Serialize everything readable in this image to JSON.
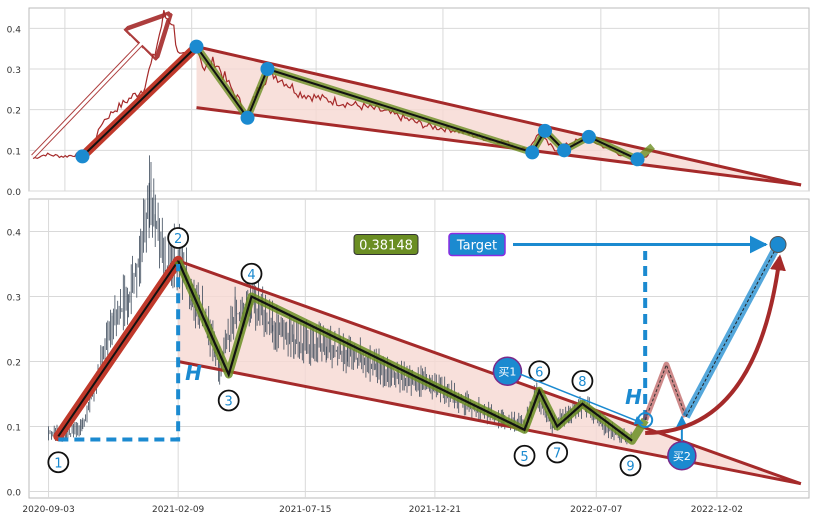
{
  "chart_data": [
    {
      "panel": "top",
      "type": "line",
      "xlim": [
        "2020-07-20",
        "2023-03-25"
      ],
      "ylim": [
        0,
        0.45
      ],
      "yticks": [
        0.0,
        0.1,
        0.2,
        0.3,
        0.4
      ],
      "ytick_labels": [
        "0.0",
        "0.1",
        "0.2",
        "0.3",
        "0.4"
      ],
      "grid": true,
      "price_series": [
        [
          "2020-07-25",
          0.08
        ],
        [
          "2020-08-10",
          0.09
        ],
        [
          "2020-09-01",
          0.085
        ],
        [
          "2020-09-20",
          0.09
        ],
        [
          "2020-10-05",
          0.1
        ],
        [
          "2020-10-20",
          0.17
        ],
        [
          "2020-11-05",
          0.2
        ],
        [
          "2020-11-25",
          0.23
        ],
        [
          "2020-12-10",
          0.25
        ],
        [
          "2020-12-25",
          0.34
        ],
        [
          "2021-01-05",
          0.43
        ],
        [
          "2021-01-15",
          0.42
        ],
        [
          "2021-01-25",
          0.33
        ],
        [
          "2021-02-05",
          0.32
        ],
        [
          "2021-02-15",
          0.36
        ],
        [
          "2021-02-25",
          0.3
        ],
        [
          "2021-03-10",
          0.32
        ],
        [
          "2021-03-25",
          0.27
        ],
        [
          "2021-04-10",
          0.22
        ],
        [
          "2021-04-20",
          0.19
        ],
        [
          "2021-05-05",
          0.26
        ],
        [
          "2021-05-20",
          0.29
        ],
        [
          "2021-06-05",
          0.27
        ],
        [
          "2021-06-25",
          0.24
        ],
        [
          "2021-07-15",
          0.23
        ],
        [
          "2021-08-10",
          0.22
        ],
        [
          "2021-09-05",
          0.21
        ],
        [
          "2021-10-01",
          0.2
        ],
        [
          "2021-11-01",
          0.18
        ],
        [
          "2021-12-01",
          0.16
        ],
        [
          "2022-01-05",
          0.15
        ],
        [
          "2022-02-10",
          0.13
        ],
        [
          "2022-03-10",
          0.12
        ],
        [
          "2022-04-05",
          0.1
        ],
        [
          "2022-04-20",
          0.14
        ],
        [
          "2022-05-10",
          0.1
        ],
        [
          "2022-06-01",
          0.12
        ],
        [
          "2022-06-20",
          0.13
        ],
        [
          "2022-07-10",
          0.11
        ],
        [
          "2022-08-01",
          0.09
        ],
        [
          "2022-08-25",
          0.08
        ],
        [
          "2022-09-05",
          0.09
        ]
      ],
      "upper_trendline": [
        [
          "2021-02-15",
          0.355
        ],
        [
          "2023-03-15",
          0.015
        ]
      ],
      "lower_trendline": [
        [
          "2021-02-15",
          0.205
        ],
        [
          "2023-03-15",
          0.015
        ]
      ],
      "zigzag": [
        [
          "2020-09-25",
          0.085
        ],
        [
          "2021-02-15",
          0.355
        ],
        [
          "2021-04-20",
          0.18
        ],
        [
          "2021-05-15",
          0.3
        ],
        [
          "2022-04-12",
          0.095
        ],
        [
          "2022-04-28",
          0.148
        ],
        [
          "2022-05-22",
          0.1
        ],
        [
          "2022-06-22",
          0.133
        ],
        [
          "2022-08-22",
          0.078
        ],
        [
          "2022-09-10",
          0.11
        ]
      ],
      "pivot_points": [
        [
          "2020-09-25",
          0.085
        ],
        [
          "2021-02-15",
          0.355
        ],
        [
          "2021-04-20",
          0.18
        ],
        [
          "2021-05-15",
          0.3
        ],
        [
          "2022-04-12",
          0.095
        ],
        [
          "2022-04-28",
          0.148
        ],
        [
          "2022-05-22",
          0.1
        ],
        [
          "2022-06-22",
          0.133
        ],
        [
          "2022-08-22",
          0.078
        ]
      ],
      "rise_arrow": [
        [
          "2020-07-25",
          0.085
        ],
        [
          "2021-01-10",
          0.43
        ]
      ]
    },
    {
      "panel": "bottom",
      "type": "line",
      "xlim": [
        "2020-08-10",
        "2023-03-25"
      ],
      "ylim": [
        -0.01,
        0.45
      ],
      "xticks": [
        "2020-09-03",
        "2021-02-09",
        "2021-07-15",
        "2021-12-21",
        "2022-07-07",
        "2022-12-02"
      ],
      "xtick_labels": [
        "2020-09-03",
        "2021-02-09",
        "2021-07-15",
        "2021-12-21",
        "2022-07-07",
        "2022-12-02"
      ],
      "yticks": [
        0.0,
        0.1,
        0.2,
        0.3,
        0.4
      ],
      "ytick_labels": [
        "0.0",
        "0.1",
        "0.2",
        "0.3",
        "0.4"
      ],
      "grid": true,
      "price_series": [
        [
          "2020-09-03",
          0.09
        ],
        [
          "2020-09-25",
          0.085
        ],
        [
          "2020-10-15",
          0.1
        ],
        [
          "2020-11-01",
          0.17
        ],
        [
          "2020-11-20",
          0.25
        ],
        [
          "2020-12-10",
          0.3
        ],
        [
          "2020-12-25",
          0.36
        ],
        [
          "2021-01-05",
          0.45
        ],
        [
          "2021-01-12",
          0.42
        ],
        [
          "2021-01-25",
          0.33
        ],
        [
          "2021-02-09",
          0.36
        ],
        [
          "2021-02-25",
          0.3
        ],
        [
          "2021-03-15",
          0.26
        ],
        [
          "2021-04-01",
          0.19
        ],
        [
          "2021-04-20",
          0.27
        ],
        [
          "2021-05-10",
          0.29
        ],
        [
          "2021-06-05",
          0.25
        ],
        [
          "2021-07-01",
          0.23
        ],
        [
          "2021-08-10",
          0.22
        ],
        [
          "2021-09-05",
          0.21
        ],
        [
          "2021-10-10",
          0.19
        ],
        [
          "2021-11-15",
          0.17
        ],
        [
          "2021-12-21",
          0.16
        ],
        [
          "2022-02-01",
          0.13
        ],
        [
          "2022-03-15",
          0.11
        ],
        [
          "2022-04-10",
          0.1
        ],
        [
          "2022-04-25",
          0.15
        ],
        [
          "2022-05-15",
          0.1
        ],
        [
          "2022-06-05",
          0.12
        ],
        [
          "2022-06-25",
          0.13
        ],
        [
          "2022-07-15",
          0.1
        ],
        [
          "2022-08-05",
          0.085
        ],
        [
          "2022-08-20",
          0.08
        ]
      ],
      "upper_trendline": [
        [
          "2021-02-09",
          0.355
        ],
        [
          "2023-03-15",
          0.012
        ]
      ],
      "lower_trendline": [
        [
          "2021-02-09",
          0.2
        ],
        [
          "2023-03-15",
          0.012
        ]
      ],
      "zigzag": [
        [
          "2020-09-15",
          0.085
        ],
        [
          "2021-02-09",
          0.355
        ],
        [
          "2021-04-12",
          0.18
        ],
        [
          "2021-05-10",
          0.3
        ],
        [
          "2022-04-10",
          0.095
        ],
        [
          "2022-04-28",
          0.155
        ],
        [
          "2022-05-20",
          0.1
        ],
        [
          "2022-06-20",
          0.135
        ],
        [
          "2022-08-20",
          0.078
        ],
        [
          "2022-09-05",
          0.11
        ]
      ],
      "numbered_pivots": [
        {
          "label": "1",
          "x": "2020-09-15",
          "y": 0.045
        },
        {
          "label": "2",
          "x": "2021-02-09",
          "y": 0.39
        },
        {
          "label": "3",
          "x": "2021-04-12",
          "y": 0.14
        },
        {
          "label": "4",
          "x": "2021-05-10",
          "y": 0.335
        },
        {
          "label": "5",
          "x": "2022-04-10",
          "y": 0.055
        },
        {
          "label": "6",
          "x": "2022-04-28",
          "y": 0.185
        },
        {
          "label": "7",
          "x": "2022-05-20",
          "y": 0.06
        },
        {
          "label": "8",
          "x": "2022-06-20",
          "y": 0.17
        },
        {
          "label": "9",
          "x": "2022-08-18",
          "y": 0.04
        }
      ],
      "measure_H": [
        {
          "label": "H",
          "x1": "2020-09-15",
          "x2": "2021-02-09",
          "low": 0.08,
          "high": 0.35
        },
        {
          "label": "H",
          "x1": "2022-09-05",
          "x2": "2022-09-05",
          "low": 0.11,
          "high": 0.37
        }
      ],
      "projection_path": [
        [
          "2022-09-05",
          0.11
        ],
        [
          "2022-10-01",
          0.195
        ],
        [
          "2022-10-25",
          0.115
        ],
        [
          "2023-02-15",
          0.38
        ]
      ],
      "target_value_label": "0.38148",
      "target_label": "Target",
      "target_arrow": [
        [
          "2022-01-20",
          0.38
        ],
        [
          "2023-02-15",
          0.38
        ]
      ],
      "buy_points": [
        {
          "label": "买1",
          "x": "2022-03-20",
          "y": 0.185
        },
        {
          "label": "买2",
          "x": "2022-10-20",
          "y": 0.055
        }
      ]
    }
  ],
  "colors": {
    "trendline": "#a52a2a",
    "price_top": "#a52a2a",
    "price_bottom": "#3c4a5a",
    "zigzag_outer": "#6b8e23",
    "zigzag_inner": "#111111",
    "rise_line": "#e03a2a",
    "fill": "#f6d8d2",
    "pivot_dot": "#1b8ad0",
    "accent_blue": "#1b8ad0",
    "label_green_bg": "#6b8e23",
    "grid": "#d9d9d9"
  }
}
